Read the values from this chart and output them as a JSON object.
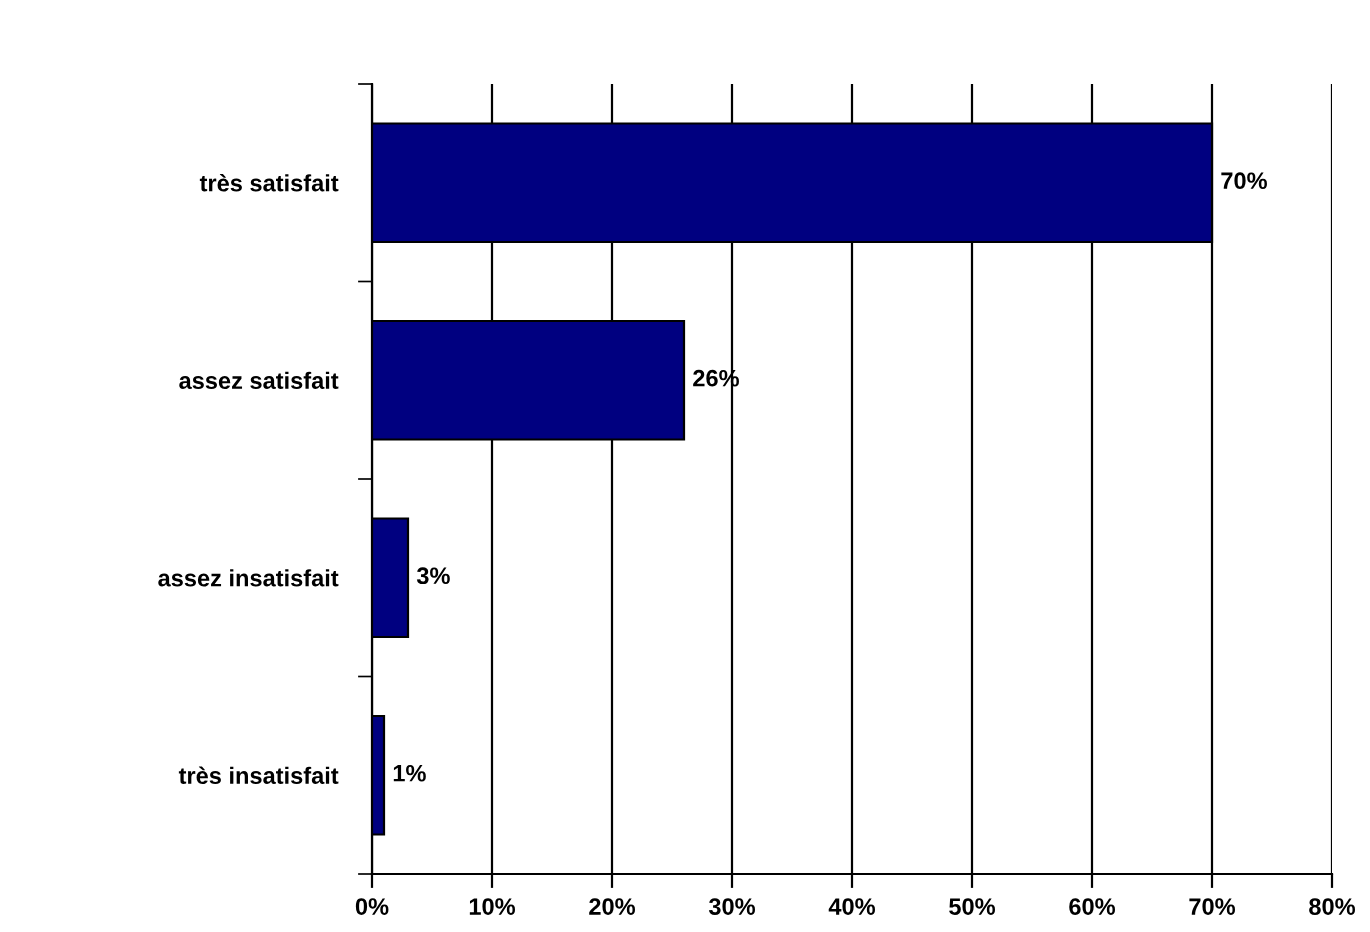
{
  "chart_data": {
    "type": "bar",
    "orientation": "horizontal",
    "categories": [
      "très satisfait",
      "assez satisfait",
      "assez insatisfait",
      "très insatisfait"
    ],
    "values": [
      70,
      26,
      3,
      1
    ],
    "value_labels": [
      "70%",
      "26%",
      "3%",
      "1%"
    ],
    "color": "#000080",
    "xlim": [
      0,
      80
    ],
    "xticks": [
      {
        "value": 0,
        "label": "0%"
      },
      {
        "value": 10,
        "label": "10%"
      },
      {
        "value": 20,
        "label": "20%"
      },
      {
        "value": 30,
        "label": "30%"
      },
      {
        "value": 40,
        "label": "40%"
      },
      {
        "value": 50,
        "label": "50%"
      },
      {
        "value": 60,
        "label": "60%"
      },
      {
        "value": 70,
        "label": "70%"
      },
      {
        "value": 80,
        "label": "80%"
      }
    ],
    "grid": "x",
    "legend": false
  }
}
